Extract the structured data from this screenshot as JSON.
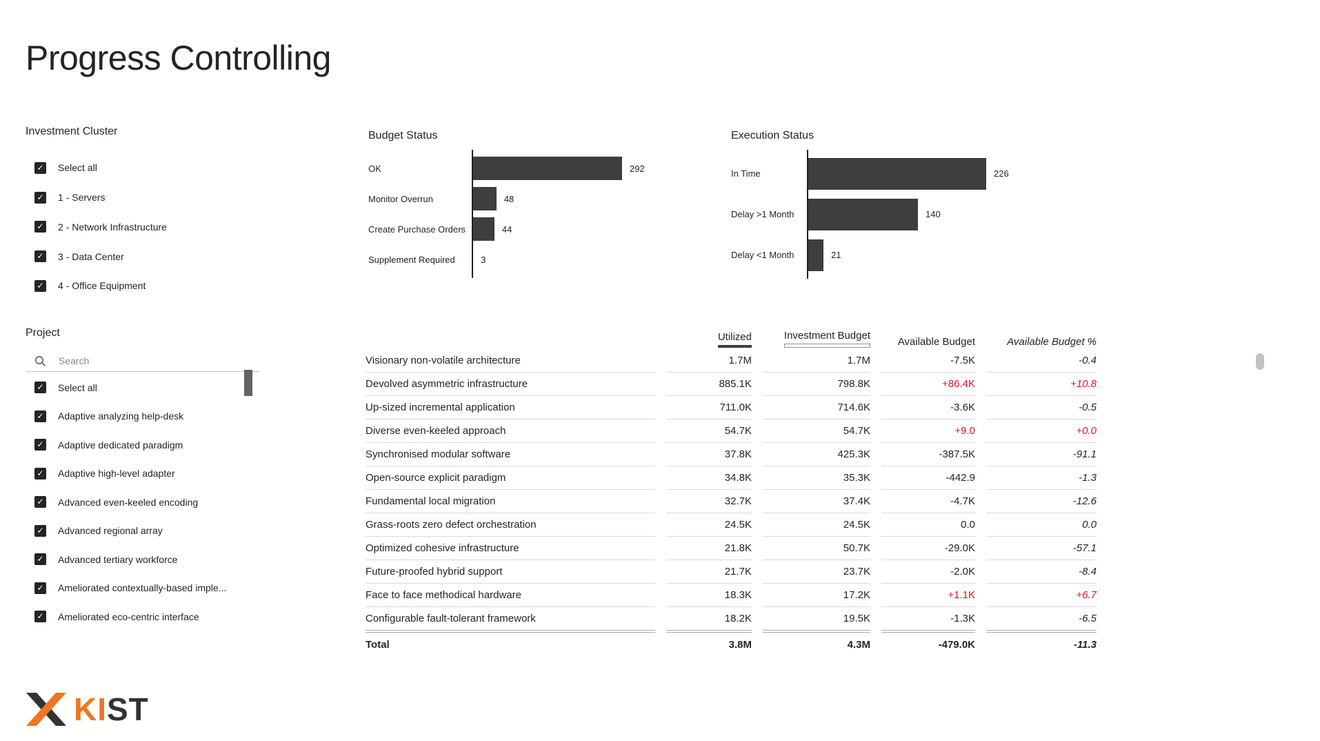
{
  "page": {
    "title": "Progress Controlling"
  },
  "filters": {
    "investment_cluster": {
      "label": "Investment Cluster",
      "items": [
        {
          "label": "Select all",
          "checked": true
        },
        {
          "label": "1 - Servers",
          "checked": true
        },
        {
          "label": "2 - Network Infrastructure",
          "checked": true
        },
        {
          "label": "3 - Data Center",
          "checked": true
        },
        {
          "label": "4 - Office Equipment",
          "checked": true
        }
      ]
    },
    "project": {
      "label": "Project",
      "search_placeholder": "Search",
      "items": [
        {
          "label": "Select all",
          "checked": true
        },
        {
          "label": "Adaptive analyzing help-desk",
          "checked": true
        },
        {
          "label": "Adaptive dedicated paradigm",
          "checked": true
        },
        {
          "label": "Adaptive high-level adapter",
          "checked": true
        },
        {
          "label": "Advanced even-keeled encoding",
          "checked": true
        },
        {
          "label": "Advanced regional array",
          "checked": true
        },
        {
          "label": "Advanced tertiary workforce",
          "checked": true
        },
        {
          "label": "Ameliorated contextually-based imple...",
          "checked": true
        },
        {
          "label": "Ameliorated eco-centric interface",
          "checked": true
        }
      ]
    }
  },
  "chart_data": [
    {
      "type": "bar",
      "orientation": "horizontal",
      "title": "Budget Status",
      "categories": [
        "OK",
        "Monitor Overrun",
        "Create Purchase Orders",
        "Supplement Required"
      ],
      "values": [
        292,
        48,
        44,
        3
      ],
      "value_labels": [
        "292",
        "48",
        "44",
        "3"
      ],
      "xlim": [
        0,
        300
      ],
      "grid": false,
      "legend": "none",
      "bar_color": "#3F3E3E"
    },
    {
      "type": "bar",
      "orientation": "horizontal",
      "title": "Execution Status",
      "categories": [
        "In Time",
        "Delay >1 Month",
        "Delay <1 Month"
      ],
      "values": [
        226,
        140,
        21
      ],
      "value_labels": [
        "226",
        "140",
        "21"
      ],
      "xlim": [
        0,
        240
      ],
      "grid": false,
      "legend": "none",
      "bar_color": "#3F3E3E"
    }
  ],
  "table": {
    "columns": [
      "",
      "Utilized",
      "Investment Budget",
      "Available Budget",
      "Available Budget %"
    ],
    "rows": [
      {
        "label": "Visionary non-volatile architecture",
        "utilized": "1.7M",
        "investment_budget": "1.7M",
        "available_budget": "-7.5K",
        "available_budget_pct": "-0.4"
      },
      {
        "label": "Devolved asymmetric infrastructure",
        "utilized": "885.1K",
        "investment_budget": "798.8K",
        "available_budget": "+86.4K",
        "available_budget_pct": "+10.8"
      },
      {
        "label": "Up-sized incremental application",
        "utilized": "711.0K",
        "investment_budget": "714.6K",
        "available_budget": "-3.6K",
        "available_budget_pct": "-0.5"
      },
      {
        "label": "Diverse even-keeled approach",
        "utilized": "54.7K",
        "investment_budget": "54.7K",
        "available_budget": "+9.0",
        "available_budget_pct": "+0.0"
      },
      {
        "label": "Synchronised modular software",
        "utilized": "37.8K",
        "investment_budget": "425.3K",
        "available_budget": "-387.5K",
        "available_budget_pct": "-91.1"
      },
      {
        "label": "Open-source explicit paradigm",
        "utilized": "34.8K",
        "investment_budget": "35.3K",
        "available_budget": "-442.9",
        "available_budget_pct": "-1.3"
      },
      {
        "label": "Fundamental local migration",
        "utilized": "32.7K",
        "investment_budget": "37.4K",
        "available_budget": "-4.7K",
        "available_budget_pct": "-12.6"
      },
      {
        "label": "Grass-roots zero defect orchestration",
        "utilized": "24.5K",
        "investment_budget": "24.5K",
        "available_budget": "0.0",
        "available_budget_pct": "0.0"
      },
      {
        "label": "Optimized cohesive infrastructure",
        "utilized": "21.8K",
        "investment_budget": "50.7K",
        "available_budget": "-29.0K",
        "available_budget_pct": "-57.1"
      },
      {
        "label": "Future-proofed hybrid support",
        "utilized": "21.7K",
        "investment_budget": "23.7K",
        "available_budget": "-2.0K",
        "available_budget_pct": "-8.4"
      },
      {
        "label": "Face to face methodical hardware",
        "utilized": "18.3K",
        "investment_budget": "17.2K",
        "available_budget": "+1.1K",
        "available_budget_pct": "+6.7"
      },
      {
        "label": "Configurable fault-tolerant framework",
        "utilized": "18.2K",
        "investment_budget": "19.5K",
        "available_budget": "-1.3K",
        "available_budget_pct": "-6.5"
      }
    ],
    "total": {
      "label": "Total",
      "utilized": "3.8M",
      "investment_budget": "4.3M",
      "available_budget": "-479.0K",
      "available_budget_pct": "-11.3"
    }
  },
  "logo": {
    "text_primary": "KI",
    "text_secondary": "ST",
    "mark_orange": "#EE7623",
    "mark_dark": "#333333"
  },
  "colors": {
    "text": "#252423",
    "bar": "#3F3E3E",
    "negative_red": "#E81123",
    "row_divider": "#D9D9D9"
  }
}
